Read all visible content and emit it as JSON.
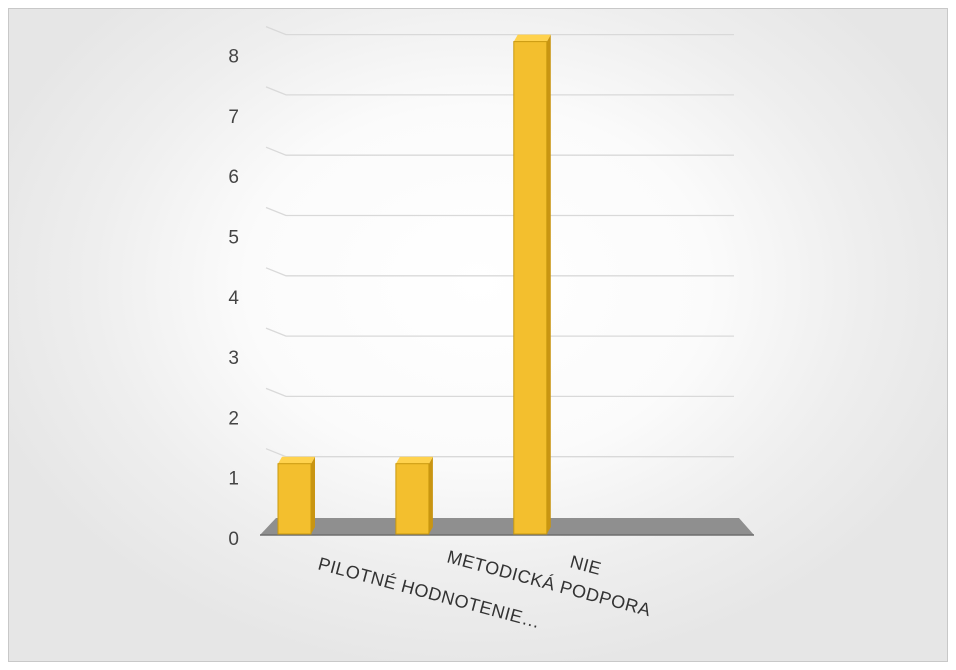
{
  "chart_data": {
    "type": "bar",
    "style": "3d-column",
    "categories": [
      "PILOTNÉ HODNOTENIE…",
      "METODICKÁ PODPORA",
      "NIE"
    ],
    "values": [
      1,
      1,
      8
    ],
    "ylim": [
      0,
      8
    ],
    "yticks": [
      "0",
      "1",
      "2",
      "3",
      "4",
      "5",
      "6",
      "7",
      "8"
    ],
    "grid": true,
    "legend": "none"
  },
  "colors": {
    "bar_front": "#f3bf2e",
    "bar_side": "#c99512",
    "bar_top": "#ffd24d",
    "floor": "#8f8f8f",
    "gridline": "#d9d9d9"
  }
}
